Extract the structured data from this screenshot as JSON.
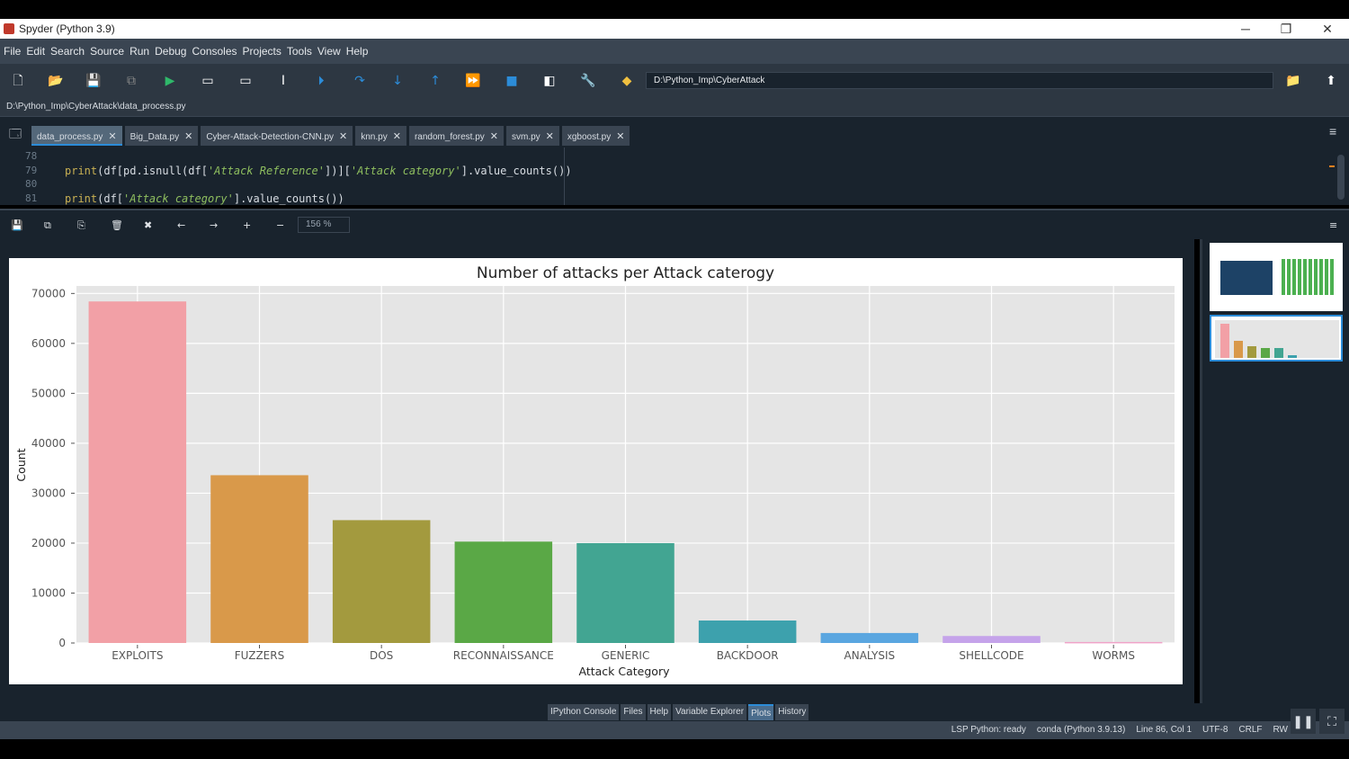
{
  "window": {
    "title": "Spyder (Python 3.9)",
    "minimize": "─",
    "restore": "❐",
    "close": "✕"
  },
  "menu": [
    "File",
    "Edit",
    "Search",
    "Source",
    "Run",
    "Debug",
    "Consoles",
    "Projects",
    "Tools",
    "View",
    "Help"
  ],
  "toolbar": {
    "icons": [
      [
        "new-file-icon",
        "🗋",
        "#fff"
      ],
      [
        "open-icon",
        "📂",
        "#fff"
      ],
      [
        "save-icon",
        "💾",
        "#888"
      ],
      [
        "save-all-icon",
        "⧉",
        "#888"
      ],
      [
        "run-icon",
        "▶",
        "#2fb86a"
      ],
      [
        "run-cell-icon",
        "▭",
        "#fff"
      ],
      [
        "run-cell-advance-icon",
        "▭",
        "#fff"
      ],
      [
        "run-selection-icon",
        "I",
        "#fff"
      ],
      [
        "debug-icon",
        "⏵",
        "#2c8cd8"
      ],
      [
        "step-icon",
        "↷",
        "#2c8cd8"
      ],
      [
        "step-into-icon",
        "↓",
        "#2c8cd8"
      ],
      [
        "step-return-icon",
        "↑",
        "#2c8cd8"
      ],
      [
        "continue-icon",
        "⏩",
        "#2c8cd8"
      ],
      [
        "stop-icon",
        "■",
        "#2c8cd8"
      ],
      [
        "maximize-pane-icon",
        "◧",
        "#fff"
      ],
      [
        "preferences-icon",
        "🔧",
        "#fff"
      ],
      [
        "python-path-icon",
        "◆",
        "#f0c040"
      ]
    ],
    "working_dir": "D:\\Python_Imp\\CyberAttack"
  },
  "file_path": "D:\\Python_Imp\\CyberAttack\\data_process.py",
  "tabs": [
    {
      "label": "data_process.py",
      "active": true
    },
    {
      "label": "Big_Data.py"
    },
    {
      "label": "Cyber-Attack-Detection-CNN.py"
    },
    {
      "label": "knn.py"
    },
    {
      "label": "random_forest.py"
    },
    {
      "label": "svm.py"
    },
    {
      "label": "xgboost.py"
    }
  ],
  "editor": {
    "lines": [
      {
        "n": "78",
        "code": ""
      },
      {
        "n": "79",
        "code": "print(df[pd.isnull(df['Attack Reference'])]['Attack category'].value_counts())"
      },
      {
        "n": "80",
        "code": ""
      },
      {
        "n": "81",
        "code": "print(df['Attack category'].value_counts())"
      }
    ]
  },
  "plots_toolbar": {
    "zoom": "156 %"
  },
  "chart_data": {
    "type": "bar",
    "title": "Number of attacks per Attack caterogy",
    "xlabel": "Attack Category",
    "ylabel": "Count",
    "categories": [
      "EXPLOITS",
      "FUZZERS",
      "DOS",
      "RECONNAISSANCE",
      "GENERIC",
      "BACKDOOR",
      "ANALYSIS",
      "SHELLCODE",
      "WORMS"
    ],
    "values": [
      68400,
      33600,
      24600,
      20300,
      20000,
      4500,
      2000,
      1400,
      200
    ],
    "colors": [
      "#f2a0a6",
      "#d9994a",
      "#a39a3e",
      "#5aa846",
      "#42a592",
      "#3da1ad",
      "#5aa6e0",
      "#c5a3ea",
      "#f0a3c8"
    ],
    "ylim": [
      0,
      71500
    ],
    "yticks": [
      0,
      10000,
      20000,
      30000,
      40000,
      50000,
      60000,
      70000
    ],
    "grid": true,
    "background": "#e5e5e5"
  },
  "pane_tabs": [
    {
      "label": "IPython Console"
    },
    {
      "label": "Files"
    },
    {
      "label": "Help"
    },
    {
      "label": "Variable Explorer"
    },
    {
      "label": "Plots",
      "active": true
    },
    {
      "label": "History"
    }
  ],
  "status": {
    "lsp": "LSP Python: ready",
    "conda": "conda (Python 3.9.13)",
    "position": "Line 86, Col 1",
    "encoding": "UTF-8",
    "eol": "CRLF",
    "mode": "RW"
  }
}
